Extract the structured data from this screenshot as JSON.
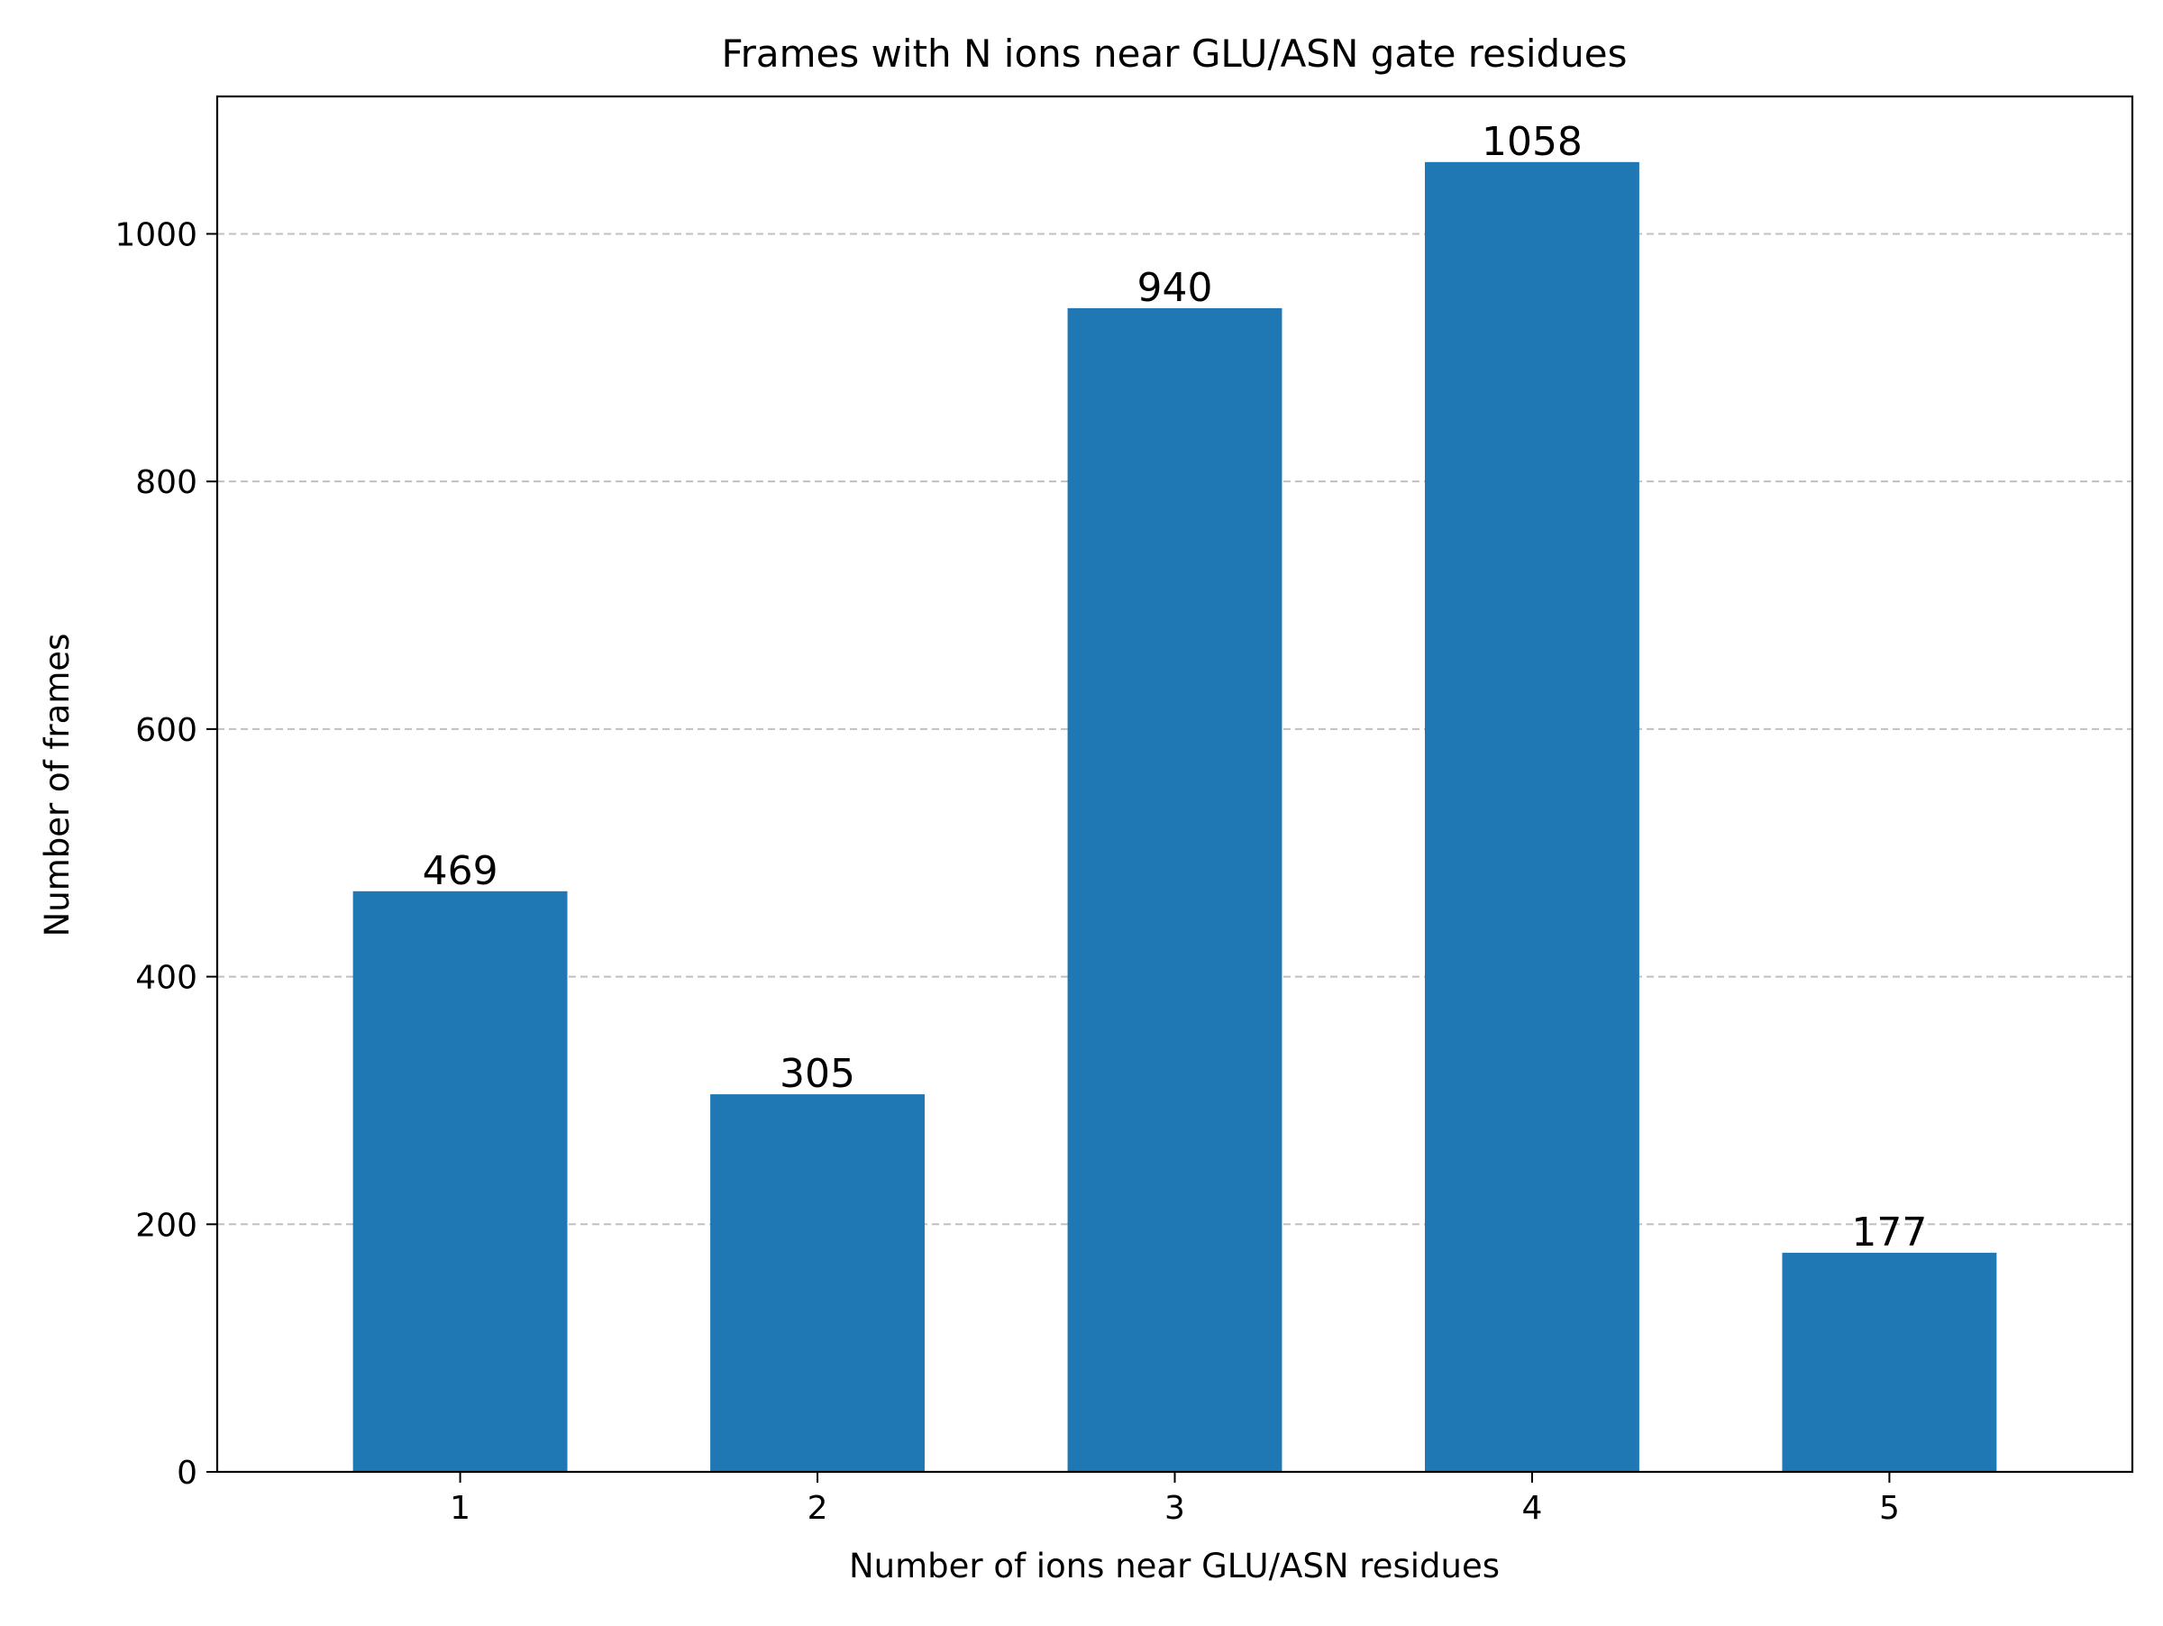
{
  "chart_data": {
    "type": "bar",
    "title": "Frames with N ions near GLU/ASN gate residues",
    "xlabel": "Number of ions near GLU/ASN residues",
    "ylabel": "Number of frames",
    "categories": [
      "1",
      "2",
      "3",
      "4",
      "5"
    ],
    "values": [
      469,
      305,
      940,
      1058,
      177
    ],
    "data_labels": [
      "469",
      "305",
      "940",
      "1058",
      "177"
    ],
    "ylim": [
      0,
      1111
    ],
    "yticks": [
      0,
      200,
      400,
      600,
      800,
      1000
    ],
    "grid": {
      "y": true,
      "x": false,
      "style": "dashed"
    },
    "legend": "none",
    "colors": {
      "bar": "#1f77b4",
      "grid": "#c0c0c0",
      "axis": "#000000",
      "text": "#000000"
    }
  }
}
